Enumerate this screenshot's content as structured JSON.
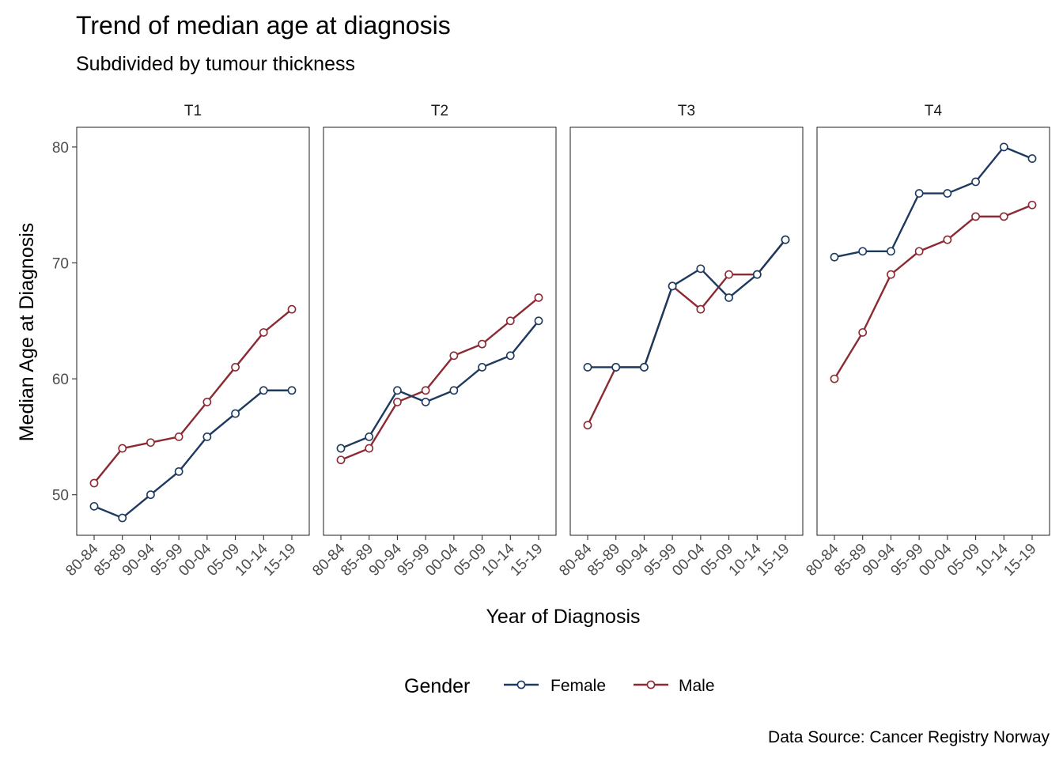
{
  "chart_data": {
    "type": "line",
    "title": "Trend of median age at diagnosis",
    "subtitle": "Subdivided by tumour thickness",
    "xlabel": "Year of Diagnosis",
    "ylabel": "Median Age at Diagnosis",
    "caption": "Data Source: Cancer Registry Norway",
    "categories": [
      "80-84",
      "85-89",
      "90-94",
      "95-99",
      "00-04",
      "05-09",
      "10-14",
      "15-19"
    ],
    "ylim": [
      46.5,
      81.7
    ],
    "yticks": [
      50,
      60,
      70,
      80
    ],
    "grid": false,
    "legend": {
      "title": "Gender",
      "placement": "bottom",
      "items": [
        {
          "name": "Female",
          "color": "#1d3a5e"
        },
        {
          "name": "Male",
          "color": "#8b2a33"
        }
      ]
    },
    "panels": [
      {
        "label": "T1",
        "series": [
          {
            "name": "Female",
            "values": [
              49,
              48,
              50,
              52,
              55,
              57,
              59,
              59
            ]
          },
          {
            "name": "Male",
            "values": [
              51,
              54,
              54.5,
              55,
              58,
              61,
              64,
              66
            ]
          }
        ]
      },
      {
        "label": "T2",
        "series": [
          {
            "name": "Female",
            "values": [
              54,
              55,
              59,
              58,
              59,
              61,
              62,
              65
            ]
          },
          {
            "name": "Male",
            "values": [
              53,
              54,
              58,
              59,
              62,
              63,
              65,
              67
            ]
          }
        ]
      },
      {
        "label": "T3",
        "series": [
          {
            "name": "Female",
            "values": [
              61,
              61,
              61,
              68,
              69.5,
              67,
              69,
              72
            ]
          },
          {
            "name": "Male",
            "values": [
              56,
              61,
              61,
              68,
              66,
              69,
              69,
              72
            ]
          }
        ]
      },
      {
        "label": "T4",
        "series": [
          {
            "name": "Female",
            "values": [
              70.5,
              71,
              71,
              76,
              76,
              77,
              80,
              79
            ]
          },
          {
            "name": "Male",
            "values": [
              60,
              64,
              69,
              71,
              72,
              74,
              74,
              75
            ]
          }
        ]
      }
    ]
  },
  "colors": {
    "female_line": "#1d3a5e",
    "male_line": "#8b2a33",
    "point_fill": "#ffffff",
    "panel_border": "#333333"
  }
}
